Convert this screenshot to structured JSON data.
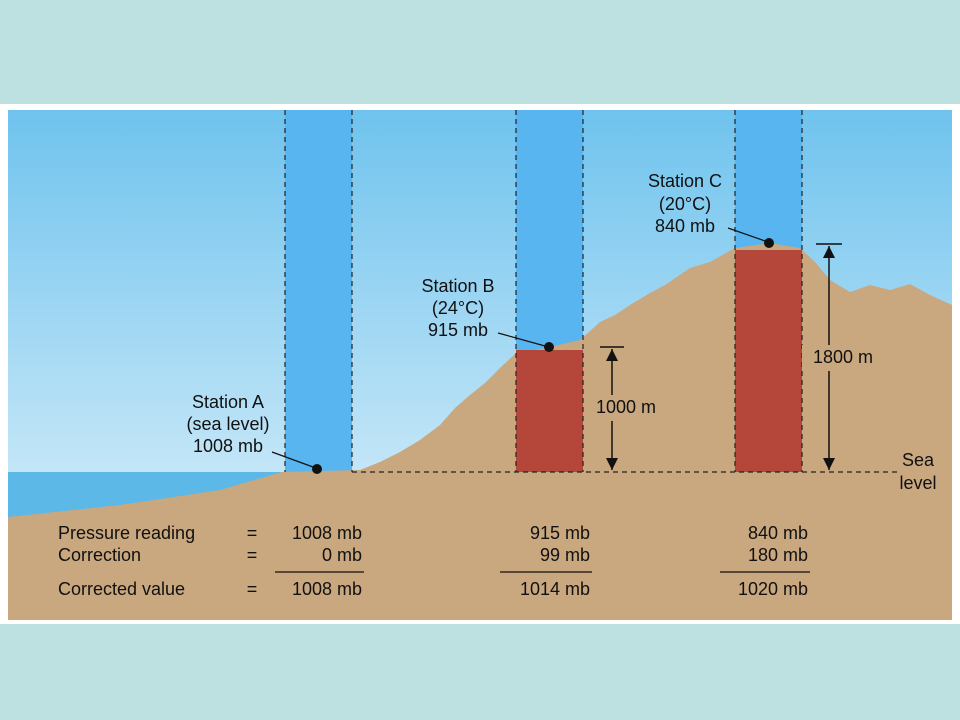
{
  "stations": [
    {
      "name": "Station A",
      "detail": "(sea level)",
      "pressure": "1008 mb"
    },
    {
      "name": "Station B",
      "detail": "(24°C)",
      "pressure": "915 mb"
    },
    {
      "name": "Station C",
      "detail": "(20°C)",
      "pressure": "840 mb"
    }
  ],
  "heights": [
    "1000 m",
    "1800 m"
  ],
  "sea_level": [
    "Sea",
    "level"
  ],
  "table": {
    "rows": [
      {
        "label": "Pressure reading",
        "equals": "=",
        "values": [
          "1008 mb",
          "915 mb",
          "840 mb"
        ]
      },
      {
        "label": "Correction",
        "equals": "=",
        "values": [
          "0 mb",
          "99 mb",
          "180 mb"
        ]
      },
      {
        "label": "Corrected value",
        "equals": "=",
        "values": [
          "1008 mb",
          "1014 mb",
          "1020 mb"
        ]
      }
    ]
  }
}
